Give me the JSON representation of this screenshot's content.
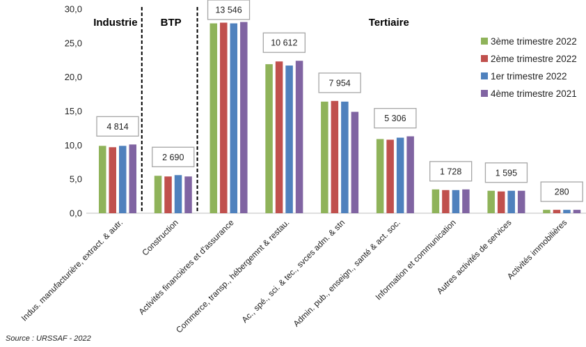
{
  "chart_data": {
    "type": "bar",
    "categories": [
      "Indus. manufacturière, extract. & autr.",
      "Construction",
      "Activités financières et d'assurance",
      "Commerce, transp., hébergemnt & restau.",
      "Ac., spé., sci. & tec., svces adm. & stn",
      "Admin. pub., enseign., santé & act. soc.",
      "Information et communication",
      "Autres activités de services",
      "Activités immobilières"
    ],
    "series": [
      {
        "name": "3ème trimestre 2022",
        "color": "#8fb35a",
        "values": [
          9.9,
          5.5,
          27.9,
          21.9,
          16.4,
          10.9,
          3.5,
          3.3,
          0.5
        ]
      },
      {
        "name": "2ème trimestre 2022",
        "color": "#c0504d",
        "values": [
          9.7,
          5.4,
          28.0,
          22.3,
          16.5,
          10.8,
          3.4,
          3.2,
          0.5
        ]
      },
      {
        "name": "1er trimestre 2022",
        "color": "#4f81bd",
        "values": [
          9.9,
          5.6,
          27.9,
          21.7,
          16.4,
          11.1,
          3.4,
          3.3,
          0.5
        ]
      },
      {
        "name": "4ème trimestre 2021",
        "color": "#8064a2",
        "values": [
          10.1,
          5.4,
          28.1,
          22.4,
          14.9,
          11.3,
          3.5,
          3.3,
          0.5
        ]
      }
    ],
    "box_labels": [
      "4 814",
      "2 690",
      "13 546",
      "10 612",
      "7 954",
      "5 306",
      "1 728",
      "1 595",
      "280"
    ],
    "sectors": [
      "Industrie",
      "BTP",
      "Tertiaire"
    ],
    "yticks": [
      "0,0",
      "5,0",
      "10,0",
      "15,0",
      "20,0",
      "25,0",
      "30,0"
    ],
    "ylim": [
      0,
      30
    ],
    "grid": false,
    "legend_position": "top-right"
  },
  "source": "Source : URSSAF  - 2022"
}
